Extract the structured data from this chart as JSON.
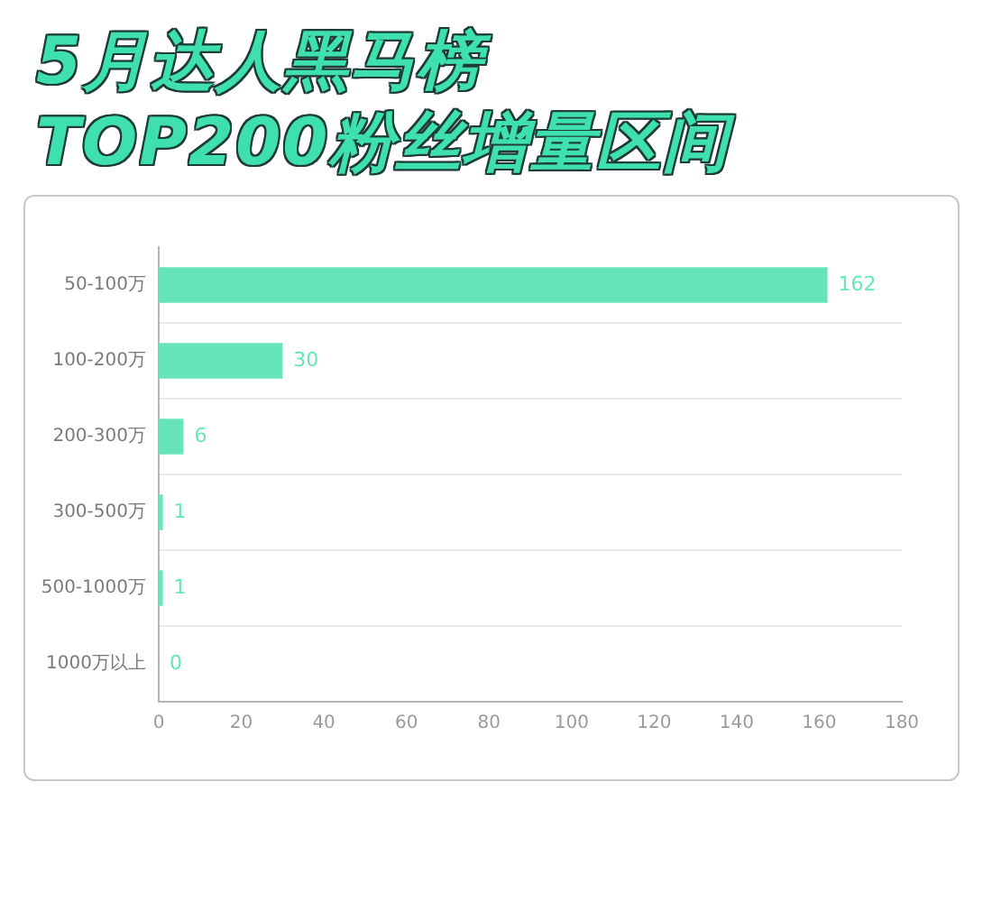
{
  "chart_data": {
    "type": "bar",
    "title": "5月达人黑马榜\nTOP200粉丝增量区间",
    "orientation": "horizontal",
    "categories": [
      "50-100万",
      "100-200万",
      "200-300万",
      "300-500万",
      "500-1000万",
      "1000万以上"
    ],
    "values": [
      162,
      30,
      6,
      1,
      1,
      0
    ],
    "color": "#66e6b8",
    "xlim": [
      0,
      180
    ],
    "xticks": [
      0,
      20,
      40,
      60,
      80,
      100,
      120,
      140,
      160,
      180
    ],
    "grid": "y",
    "data_labels": true
  }
}
